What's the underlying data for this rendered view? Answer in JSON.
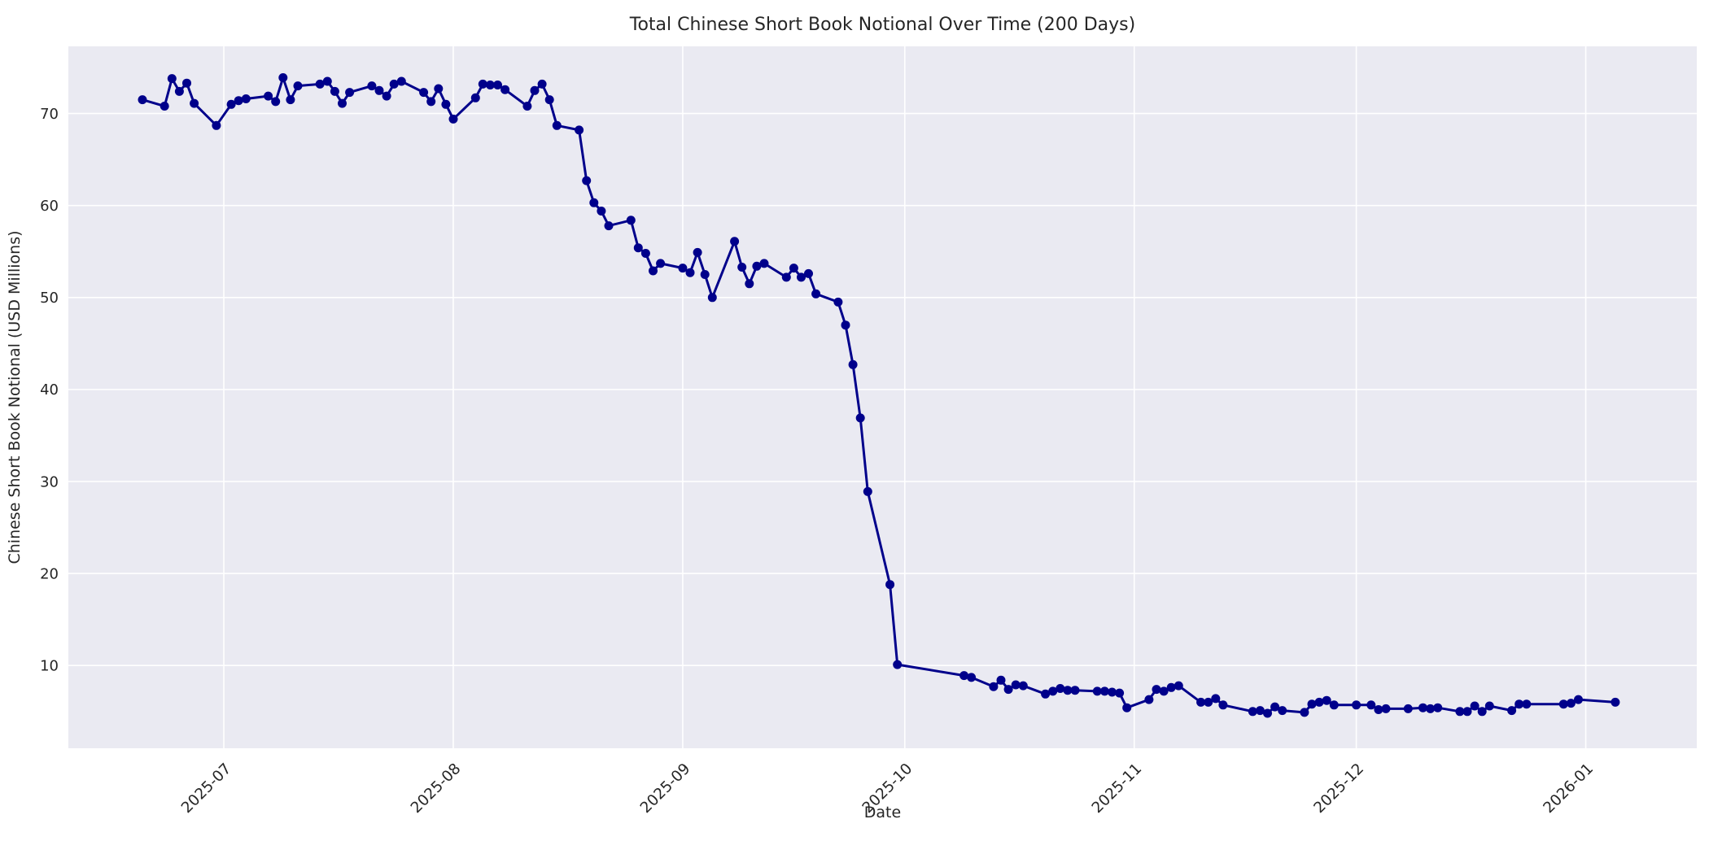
{
  "figure": {
    "background": "#ffffff",
    "plot_background": "#eaeaf2",
    "grid_color": "#ffffff",
    "line_color": "#00008b",
    "text_color": "#262626"
  },
  "chart_data": {
    "type": "line",
    "title": "Total Chinese Short Book Notional Over Time (200 Days)",
    "xlabel": "Date",
    "ylabel": "Chinese Short Book Notional (USD Millions)",
    "legend": "none",
    "grid": true,
    "marker": "circle",
    "xlim": [
      "2025-06-10",
      "2026-01-16"
    ],
    "ylim": [
      1.0,
      77.3
    ],
    "yticks": [
      10,
      20,
      30,
      40,
      50,
      60,
      70
    ],
    "xticks": [
      {
        "date": "2025-07-01",
        "label": "2025-07"
      },
      {
        "date": "2025-08-01",
        "label": "2025-08"
      },
      {
        "date": "2025-09-01",
        "label": "2025-09"
      },
      {
        "date": "2025-10-01",
        "label": "2025-10"
      },
      {
        "date": "2025-11-01",
        "label": "2025-11"
      },
      {
        "date": "2025-12-01",
        "label": "2025-12"
      },
      {
        "date": "2026-01-01",
        "label": "2026-01"
      }
    ],
    "series": [
      {
        "name": "Total Chinese Short Book Notional",
        "points": [
          [
            "2025-06-20",
            71.5
          ],
          [
            "2025-06-23",
            70.8
          ],
          [
            "2025-06-24",
            73.8
          ],
          [
            "2025-06-25",
            72.4
          ],
          [
            "2025-06-26",
            73.3
          ],
          [
            "2025-06-27",
            71.1
          ],
          [
            "2025-06-30",
            68.7
          ],
          [
            "2025-07-02",
            71.0
          ],
          [
            "2025-07-03",
            71.4
          ],
          [
            "2025-07-04",
            71.6
          ],
          [
            "2025-07-07",
            71.9
          ],
          [
            "2025-07-08",
            71.3
          ],
          [
            "2025-07-09",
            73.9
          ],
          [
            "2025-07-10",
            71.5
          ],
          [
            "2025-07-11",
            73.0
          ],
          [
            "2025-07-14",
            73.2
          ],
          [
            "2025-07-15",
            73.5
          ],
          [
            "2025-07-16",
            72.4
          ],
          [
            "2025-07-17",
            71.1
          ],
          [
            "2025-07-18",
            72.3
          ],
          [
            "2025-07-21",
            73.0
          ],
          [
            "2025-07-22",
            72.5
          ],
          [
            "2025-07-23",
            71.9
          ],
          [
            "2025-07-24",
            73.2
          ],
          [
            "2025-07-25",
            73.5
          ],
          [
            "2025-07-28",
            72.3
          ],
          [
            "2025-07-29",
            71.3
          ],
          [
            "2025-07-30",
            72.7
          ],
          [
            "2025-07-31",
            71.0
          ],
          [
            "2025-08-01",
            69.4
          ],
          [
            "2025-08-04",
            71.7
          ],
          [
            "2025-08-05",
            73.2
          ],
          [
            "2025-08-06",
            73.1
          ],
          [
            "2025-08-07",
            73.1
          ],
          [
            "2025-08-08",
            72.6
          ],
          [
            "2025-08-11",
            70.8
          ],
          [
            "2025-08-12",
            72.5
          ],
          [
            "2025-08-13",
            73.2
          ],
          [
            "2025-08-14",
            71.5
          ],
          [
            "2025-08-15",
            68.7
          ],
          [
            "2025-08-18",
            68.2
          ],
          [
            "2025-08-19",
            62.7
          ],
          [
            "2025-08-20",
            60.3
          ],
          [
            "2025-08-21",
            59.4
          ],
          [
            "2025-08-22",
            57.8
          ],
          [
            "2025-08-25",
            58.4
          ],
          [
            "2025-08-26",
            55.4
          ],
          [
            "2025-08-27",
            54.8
          ],
          [
            "2025-08-28",
            52.9
          ],
          [
            "2025-08-29",
            53.7
          ],
          [
            "2025-09-01",
            53.2
          ],
          [
            "2025-09-02",
            52.7
          ],
          [
            "2025-09-03",
            54.9
          ],
          [
            "2025-09-04",
            52.5
          ],
          [
            "2025-09-05",
            50.0
          ],
          [
            "2025-09-08",
            56.1
          ],
          [
            "2025-09-09",
            53.3
          ],
          [
            "2025-09-10",
            51.5
          ],
          [
            "2025-09-11",
            53.4
          ],
          [
            "2025-09-12",
            53.7
          ],
          [
            "2025-09-15",
            52.2
          ],
          [
            "2025-09-16",
            53.2
          ],
          [
            "2025-09-17",
            52.2
          ],
          [
            "2025-09-18",
            52.6
          ],
          [
            "2025-09-19",
            50.4
          ],
          [
            "2025-09-22",
            49.5
          ],
          [
            "2025-09-23",
            47.0
          ],
          [
            "2025-09-24",
            42.7
          ],
          [
            "2025-09-25",
            36.9
          ],
          [
            "2025-09-26",
            28.9
          ],
          [
            "2025-09-29",
            18.8
          ],
          [
            "2025-09-30",
            10.1
          ],
          [
            "2025-10-09",
            8.9
          ],
          [
            "2025-10-10",
            8.7
          ],
          [
            "2025-10-13",
            7.7
          ],
          [
            "2025-10-14",
            8.4
          ],
          [
            "2025-10-15",
            7.4
          ],
          [
            "2025-10-16",
            7.9
          ],
          [
            "2025-10-17",
            7.8
          ],
          [
            "2025-10-20",
            6.9
          ],
          [
            "2025-10-21",
            7.2
          ],
          [
            "2025-10-22",
            7.5
          ],
          [
            "2025-10-23",
            7.3
          ],
          [
            "2025-10-24",
            7.3
          ],
          [
            "2025-10-27",
            7.2
          ],
          [
            "2025-10-28",
            7.2
          ],
          [
            "2025-10-29",
            7.1
          ],
          [
            "2025-10-30",
            7.0
          ],
          [
            "2025-10-31",
            5.4
          ],
          [
            "2025-11-03",
            6.3
          ],
          [
            "2025-11-04",
            7.4
          ],
          [
            "2025-11-05",
            7.2
          ],
          [
            "2025-11-06",
            7.6
          ],
          [
            "2025-11-07",
            7.8
          ],
          [
            "2025-11-10",
            6.0
          ],
          [
            "2025-11-11",
            6.0
          ],
          [
            "2025-11-12",
            6.4
          ],
          [
            "2025-11-13",
            5.7
          ],
          [
            "2025-11-17",
            5.0
          ],
          [
            "2025-11-18",
            5.1
          ],
          [
            "2025-11-19",
            4.8
          ],
          [
            "2025-11-20",
            5.5
          ],
          [
            "2025-11-21",
            5.1
          ],
          [
            "2025-11-24",
            4.9
          ],
          [
            "2025-11-25",
            5.8
          ],
          [
            "2025-11-26",
            6.0
          ],
          [
            "2025-11-27",
            6.2
          ],
          [
            "2025-11-28",
            5.7
          ],
          [
            "2025-12-01",
            5.7
          ],
          [
            "2025-12-03",
            5.7
          ],
          [
            "2025-12-04",
            5.2
          ],
          [
            "2025-12-05",
            5.3
          ],
          [
            "2025-12-08",
            5.3
          ],
          [
            "2025-12-10",
            5.4
          ],
          [
            "2025-12-11",
            5.3
          ],
          [
            "2025-12-12",
            5.4
          ],
          [
            "2025-12-15",
            5.0
          ],
          [
            "2025-12-16",
            5.0
          ],
          [
            "2025-12-17",
            5.6
          ],
          [
            "2025-12-18",
            5.0
          ],
          [
            "2025-12-19",
            5.6
          ],
          [
            "2025-12-22",
            5.1
          ],
          [
            "2025-12-23",
            5.8
          ],
          [
            "2025-12-24",
            5.8
          ],
          [
            "2025-12-29",
            5.8
          ],
          [
            "2025-12-30",
            5.9
          ],
          [
            "2025-12-31",
            6.3
          ],
          [
            "2026-01-05",
            6.0
          ]
        ]
      }
    ]
  }
}
